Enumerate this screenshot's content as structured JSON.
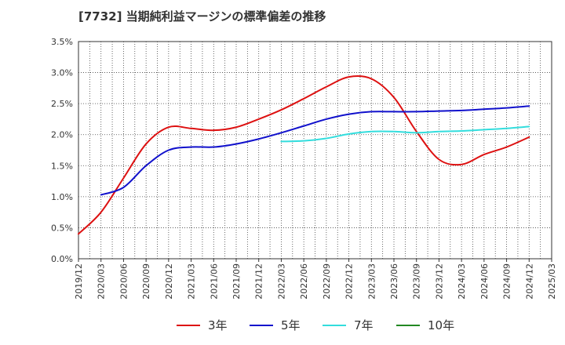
{
  "title": "[7732]  当期純利益マージンの標準偏差の推移",
  "chart_data": {
    "type": "line",
    "x": [
      "2019/12",
      "2020/03",
      "2020/06",
      "2020/09",
      "2020/12",
      "2021/03",
      "2021/06",
      "2021/09",
      "2021/12",
      "2022/03",
      "2022/06",
      "2022/09",
      "2022/12",
      "2023/03",
      "2023/06",
      "2023/09",
      "2023/12",
      "2024/03",
      "2024/06",
      "2024/09",
      "2024/12",
      "2025/03"
    ],
    "y_ticks": [
      "0.0%",
      "0.5%",
      "1.0%",
      "1.5%",
      "2.0%",
      "2.5%",
      "3.0%",
      "3.5%"
    ],
    "ylim": [
      0,
      3.5
    ],
    "grid": true,
    "legend_position": "bottom",
    "series": [
      {
        "name": "3年",
        "color": "#dd1111",
        "values": [
          0.4,
          0.75,
          1.3,
          1.85,
          2.12,
          2.1,
          2.07,
          2.12,
          2.25,
          2.4,
          2.58,
          2.77,
          2.93,
          2.9,
          2.6,
          2.05,
          1.6,
          1.52,
          1.68,
          1.8,
          1.96,
          null
        ]
      },
      {
        "name": "5年",
        "color": "#1111cc",
        "values": [
          null,
          1.03,
          1.15,
          1.5,
          1.75,
          1.8,
          1.8,
          1.85,
          1.93,
          2.03,
          2.14,
          2.25,
          2.33,
          2.37,
          2.37,
          2.37,
          2.38,
          2.39,
          2.41,
          2.43,
          2.46,
          null
        ]
      },
      {
        "name": "7年",
        "color": "#33dddd",
        "values": [
          null,
          null,
          null,
          null,
          null,
          null,
          null,
          null,
          null,
          1.89,
          1.9,
          1.94,
          2.01,
          2.05,
          2.05,
          2.03,
          2.05,
          2.06,
          2.08,
          2.1,
          2.13,
          null
        ]
      },
      {
        "name": "10年",
        "color": "#228822",
        "values": [
          null,
          null,
          null,
          null,
          null,
          null,
          null,
          null,
          null,
          null,
          null,
          null,
          null,
          null,
          null,
          null,
          null,
          null,
          null,
          null,
          null,
          null
        ]
      }
    ]
  }
}
